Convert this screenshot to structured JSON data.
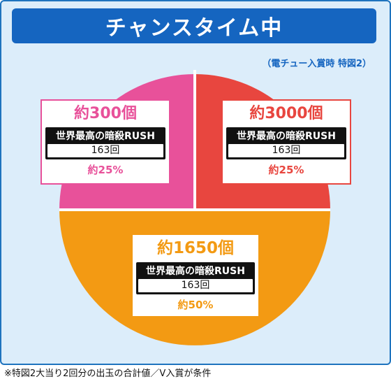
{
  "title": "チャンスタイム中",
  "subtitle": "（電チュー入賞時 特図2）",
  "footnote": "※特図2大当り2回分の出玉の合計値／V入賞が条件",
  "colors": {
    "pink": "#e8519a",
    "red": "#e8463f",
    "orange": "#f39a13",
    "banner": "#1565c0"
  },
  "chart_data": {
    "type": "pie",
    "slices": [
      {
        "amount": "約300個",
        "label": "世界最高の暗殺RUSH",
        "count": "163回",
        "percent_label": "約25%",
        "value": 25,
        "color": "#e8519a"
      },
      {
        "amount": "約3000個",
        "label": "世界最高の暗殺RUSH",
        "count": "163回",
        "percent_label": "約25%",
        "value": 25,
        "color": "#e8463f"
      },
      {
        "amount": "約1650個",
        "label": "世界最高の暗殺RUSH",
        "count": "163回",
        "percent_label": "約50%",
        "value": 50,
        "color": "#f39a13"
      }
    ]
  }
}
